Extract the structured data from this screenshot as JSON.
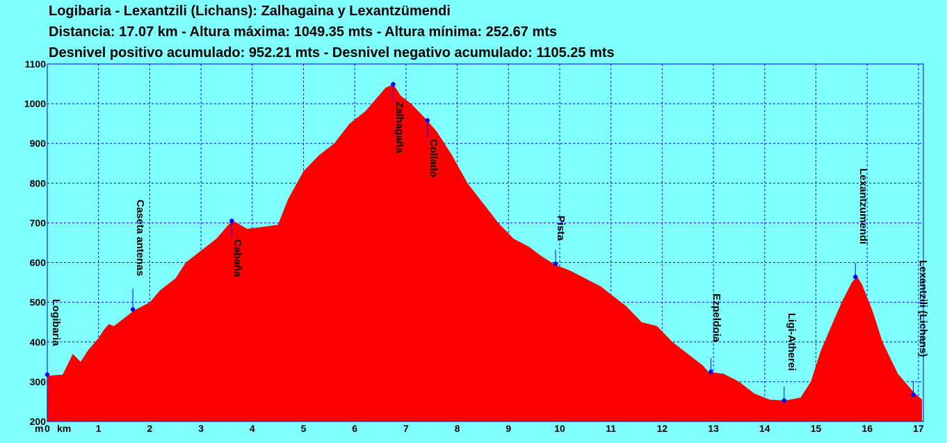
{
  "header": {
    "line1": "Logibaria - Lexantzili (Lichans):  Zalhagaina y Lexantzümendi",
    "line2": "Distancia: 17.07 km - Altura máxima: 1049.35 mts - Altura mínima: 252.67 mts",
    "line3": "Desnivel positivo acumulado: 952.21 mts - Desnivel negativo acumulado: 1105.25 mts"
  },
  "colors": {
    "background": "#80ffff",
    "profile_fill": "#ff0000",
    "grid": "#0000ff",
    "marker": "#0000ff",
    "text": "#000000"
  },
  "chart_data": {
    "type": "area",
    "title": "Logibaria - Lexantzili (Lichans):  Zalhagaina y Lexantzümendi",
    "xlabel": "km",
    "ylabel": "m",
    "xlim": [
      0,
      17.07
    ],
    "ylim": [
      200,
      1100
    ],
    "grid": true,
    "x_ticks": [
      "0",
      "1",
      "2",
      "3",
      "4",
      "5",
      "6",
      "7",
      "8",
      "9",
      "10",
      "11",
      "12",
      "13",
      "14",
      "15",
      "16",
      "17"
    ],
    "y_ticks": [
      "200",
      "300",
      "400",
      "500",
      "600",
      "700",
      "800",
      "900",
      "1000",
      "1100"
    ],
    "x": [
      0,
      0.3,
      0.5,
      0.65,
      0.8,
      1.0,
      1.1,
      1.2,
      1.3,
      1.5,
      1.7,
      2.0,
      2.2,
      2.5,
      2.7,
      3.0,
      3.3,
      3.5,
      3.6,
      3.7,
      3.9,
      4.2,
      4.5,
      4.7,
      5.0,
      5.3,
      5.6,
      5.9,
      6.2,
      6.4,
      6.6,
      6.75,
      6.9,
      7.1,
      7.4,
      7.6,
      7.9,
      8.2,
      8.5,
      8.8,
      9.1,
      9.4,
      9.6,
      9.9,
      10.2,
      10.5,
      10.8,
      11.0,
      11.3,
      11.6,
      11.9,
      12.2,
      12.5,
      12.8,
      12.9,
      13.2,
      13.5,
      13.8,
      14.1,
      14.4,
      14.7,
      14.9,
      15.1,
      15.3,
      15.5,
      15.7,
      15.8,
      15.9,
      16.1,
      16.3,
      16.6,
      16.9,
      17.07
    ],
    "y": [
      315,
      318,
      370,
      350,
      380,
      410,
      430,
      445,
      440,
      460,
      480,
      500,
      530,
      560,
      600,
      630,
      660,
      690,
      705,
      700,
      685,
      690,
      695,
      760,
      830,
      870,
      900,
      950,
      980,
      1010,
      1040,
      1049,
      1020,
      1000,
      960,
      930,
      870,
      800,
      750,
      700,
      660,
      640,
      620,
      595,
      580,
      560,
      540,
      520,
      490,
      450,
      440,
      400,
      370,
      340,
      325,
      320,
      300,
      270,
      255,
      252.67,
      260,
      300,
      380,
      440,
      500,
      550,
      565,
      545,
      480,
      400,
      320,
      275,
      255
    ],
    "waypoints": [
      {
        "name": "Logibaria",
        "km": 0.0,
        "alt": 318
      },
      {
        "name": "Caseta antenas",
        "km": 1.67,
        "alt": 482
      },
      {
        "name": "Cabaña",
        "km": 3.6,
        "alt": 705
      },
      {
        "name": "Zalhagaña",
        "km": 6.75,
        "alt": 1049
      },
      {
        "name": "Collado",
        "km": 7.42,
        "alt": 958
      },
      {
        "name": "Pista",
        "km": 9.92,
        "alt": 597
      },
      {
        "name": "Ezpeldoia",
        "km": 12.95,
        "alt": 325
      },
      {
        "name": "Ligi-Atherei",
        "km": 14.38,
        "alt": 252.67
      },
      {
        "name": "Lexantzumendi",
        "km": 15.77,
        "alt": 564
      },
      {
        "name": "Lexantzili (Lichans)",
        "km": 16.9,
        "alt": 267
      }
    ],
    "axis_unit_y": "m",
    "axis_unit_x": "km"
  }
}
